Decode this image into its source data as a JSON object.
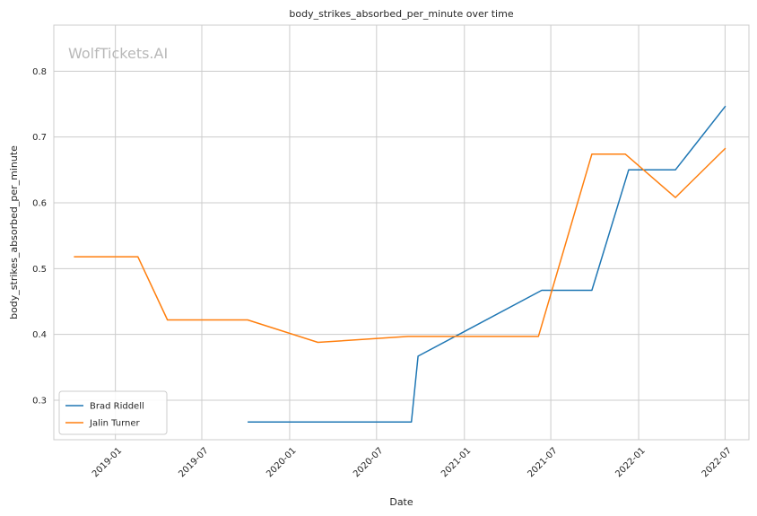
{
  "chart_data": {
    "type": "line",
    "title": "body_strikes_absorbed_per_minute over time",
    "xlabel": "Date",
    "ylabel": "body_strikes_absorbed_per_minute",
    "watermark": "WolfTickets.AI",
    "x_ticks": [
      "2019-01",
      "2019-07",
      "2020-01",
      "2020-07",
      "2021-01",
      "2021-07",
      "2022-01",
      "2022-07"
    ],
    "y_ticks": [
      "0.3",
      "0.4",
      "0.5",
      "0.6",
      "0.7",
      "0.8"
    ],
    "ylim": [
      0.24,
      0.87
    ],
    "xlim": [
      "2018-08-25",
      "2022-08-20"
    ],
    "grid": true,
    "legend_placement": "bottom-left",
    "series": [
      {
        "name": "Brad Riddell",
        "color": "#1f77b4",
        "points": [
          {
            "x": "2019-10-05",
            "y": 0.267
          },
          {
            "x": "2020-09-12",
            "y": 0.267
          },
          {
            "x": "2020-09-26",
            "y": 0.367
          },
          {
            "x": "2021-06-12",
            "y": 0.467
          },
          {
            "x": "2021-09-25",
            "y": 0.467
          },
          {
            "x": "2021-12-11",
            "y": 0.65
          },
          {
            "x": "2022-03-19",
            "y": 0.65
          },
          {
            "x": "2022-07-02",
            "y": 0.747
          }
        ]
      },
      {
        "name": "Jalin Turner",
        "color": "#ff7f0e",
        "points": [
          {
            "x": "2018-10-06",
            "y": 0.518
          },
          {
            "x": "2019-02-17",
            "y": 0.518
          },
          {
            "x": "2019-04-20",
            "y": 0.422
          },
          {
            "x": "2019-10-05",
            "y": 0.422
          },
          {
            "x": "2020-02-29",
            "y": 0.388
          },
          {
            "x": "2020-09-05",
            "y": 0.397
          },
          {
            "x": "2021-06-05",
            "y": 0.397
          },
          {
            "x": "2021-09-25",
            "y": 0.674
          },
          {
            "x": "2021-12-04",
            "y": 0.674
          },
          {
            "x": "2022-03-19",
            "y": 0.608
          },
          {
            "x": "2022-07-02",
            "y": 0.683
          }
        ]
      }
    ]
  }
}
